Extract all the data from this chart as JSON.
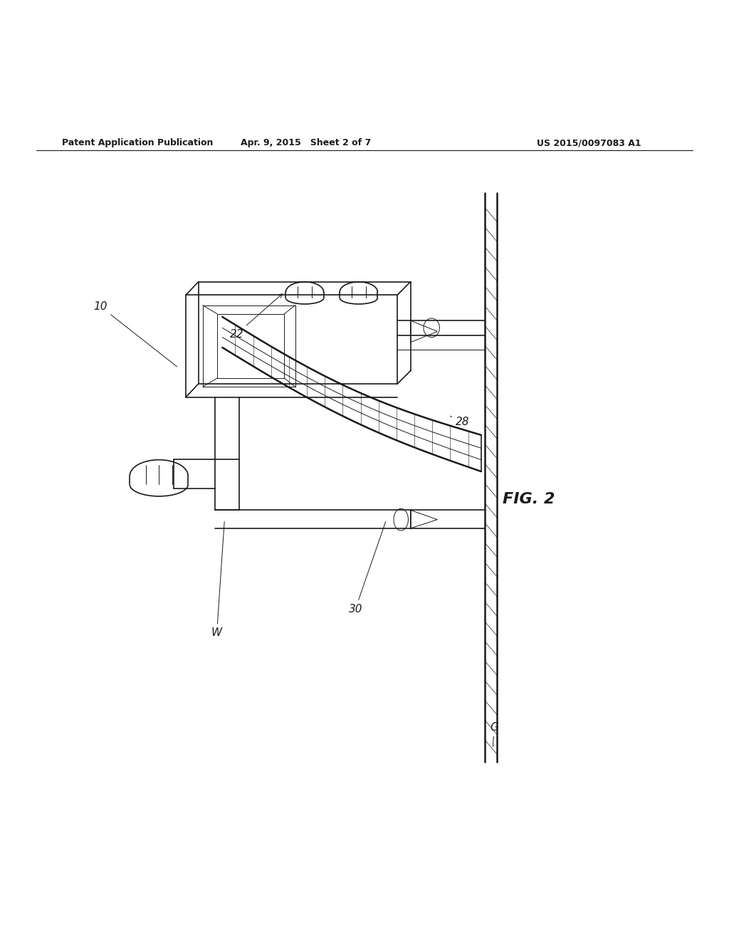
{
  "title_left": "Patent Application Publication",
  "title_center": "Apr. 9, 2015   Sheet 2 of 7",
  "title_right": "US 2015/0097083 A1",
  "fig_label": "FIG. 2",
  "bg_color": "#ffffff",
  "line_color": "#1a1a1a",
  "title_fontsize": 9,
  "label_fontsize": 11
}
